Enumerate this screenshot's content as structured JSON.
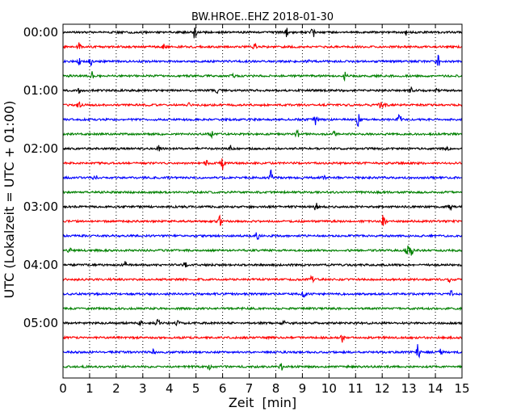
{
  "chart_data": {
    "type": "line",
    "title": "BW.HROE..EHZ 2018-01-30",
    "xlabel": "Zeit  [min]",
    "ylabel": "UTC (Lokalzeit = UTC + 01:00)",
    "xlim": [
      0,
      15
    ],
    "x_ticks": [
      "0",
      "1",
      "2",
      "3",
      "4",
      "5",
      "6",
      "7",
      "8",
      "9",
      "10",
      "11",
      "12",
      "13",
      "14",
      "15"
    ],
    "y_ticks": [
      {
        "label": "00:00",
        "trace": 0
      },
      {
        "label": "01:00",
        "trace": 4
      },
      {
        "label": "02:00",
        "trace": 8
      },
      {
        "label": "03:00",
        "trace": 12
      },
      {
        "label": "04:00",
        "trace": 16
      },
      {
        "label": "05:00",
        "trace": 20
      }
    ],
    "grid": true,
    "interval_minutes": 15,
    "trace_colors": [
      "#000000",
      "#ff0000",
      "#0000ff",
      "#008000"
    ],
    "traces": [
      {
        "start": "00:00",
        "events": [
          {
            "t": 4.95,
            "a": 9
          },
          {
            "t": 8.4,
            "a": 6
          },
          {
            "t": 9.4,
            "a": 7
          },
          {
            "t": 12.9,
            "a": 4
          }
        ]
      },
      {
        "start": "00:15",
        "events": [
          {
            "t": 0.6,
            "a": 5
          },
          {
            "t": 7.2,
            "a": 4
          },
          {
            "t": 3.8,
            "a": 3
          }
        ]
      },
      {
        "start": "00:30",
        "events": [
          {
            "t": 0.6,
            "a": 5
          },
          {
            "t": 1.05,
            "a": 7
          },
          {
            "t": 14.1,
            "a": 8
          },
          {
            "t": 9.2,
            "a": 3
          }
        ]
      },
      {
        "start": "00:45",
        "events": [
          {
            "t": 1.1,
            "a": 8
          },
          {
            "t": 10.6,
            "a": 8
          },
          {
            "t": 6.4,
            "a": 3
          }
        ]
      },
      {
        "start": "01:00",
        "events": [
          {
            "t": 0.6,
            "a": 4
          },
          {
            "t": 5.8,
            "a": 4
          },
          {
            "t": 13.1,
            "a": 4
          },
          {
            "t": 14,
            "a": 3
          }
        ]
      },
      {
        "start": "01:15",
        "events": [
          {
            "t": 0.6,
            "a": 4
          },
          {
            "t": 4.7,
            "a": 3
          },
          {
            "t": 11.95,
            "a": 6
          },
          {
            "t": 12.1,
            "a": 5
          }
        ]
      },
      {
        "start": "01:30",
        "events": [
          {
            "t": 9.5,
            "a": 10
          },
          {
            "t": 11.1,
            "a": 9
          },
          {
            "t": 12.65,
            "a": 10
          }
        ]
      },
      {
        "start": "01:45",
        "events": [
          {
            "t": 5.6,
            "a": 4
          },
          {
            "t": 8.8,
            "a": 6
          },
          {
            "t": 10.2,
            "a": 4
          }
        ]
      },
      {
        "start": "02:00",
        "events": [
          {
            "t": 3.6,
            "a": 5
          },
          {
            "t": 6.3,
            "a": 4
          },
          {
            "t": 14.45,
            "a": 3
          }
        ]
      },
      {
        "start": "02:15",
        "events": [
          {
            "t": 6.0,
            "a": 9
          },
          {
            "t": 5.4,
            "a": 3
          }
        ]
      },
      {
        "start": "02:30",
        "events": [
          {
            "t": 1.2,
            "a": 6
          },
          {
            "t": 7.8,
            "a": 11
          },
          {
            "t": 9.8,
            "a": 3
          }
        ]
      },
      {
        "start": "02:45",
        "events": []
      },
      {
        "start": "03:00",
        "events": [
          {
            "t": 9.5,
            "a": 8
          },
          {
            "t": 14.55,
            "a": 5
          }
        ]
      },
      {
        "start": "03:15",
        "events": [
          {
            "t": 5.9,
            "a": 7
          },
          {
            "t": 12.05,
            "a": 16
          }
        ]
      },
      {
        "start": "03:30",
        "events": [
          {
            "t": 7.3,
            "a": 6
          }
        ]
      },
      {
        "start": "03:45",
        "events": [
          {
            "t": 0.25,
            "a": 4
          },
          {
            "t": 12.95,
            "a": 8
          },
          {
            "t": 13.1,
            "a": 6
          }
        ]
      },
      {
        "start": "04:00",
        "events": [
          {
            "t": 2.35,
            "a": 5
          },
          {
            "t": 4.6,
            "a": 3
          }
        ]
      },
      {
        "start": "04:15",
        "events": [
          {
            "t": 9.35,
            "a": 7
          },
          {
            "t": 14.5,
            "a": 3
          }
        ]
      },
      {
        "start": "04:30",
        "events": [
          {
            "t": 9.05,
            "a": 8
          },
          {
            "t": 14.6,
            "a": 4
          }
        ]
      },
      {
        "start": "04:45",
        "events": []
      },
      {
        "start": "05:00",
        "events": [
          {
            "t": 2.9,
            "a": 4
          },
          {
            "t": 3.55,
            "a": 10
          },
          {
            "t": 4.3,
            "a": 4
          },
          {
            "t": 8.3,
            "a": 3
          }
        ]
      },
      {
        "start": "05:15",
        "events": [
          {
            "t": 10.5,
            "a": 6
          }
        ]
      },
      {
        "start": "05:30",
        "events": [
          {
            "t": 13.35,
            "a": 14
          },
          {
            "t": 14.2,
            "a": 5
          },
          {
            "t": 3.4,
            "a": 3
          }
        ]
      },
      {
        "start": "05:45",
        "events": [
          {
            "t": 8.2,
            "a": 5
          },
          {
            "t": 5.5,
            "a": 3
          }
        ]
      }
    ]
  }
}
